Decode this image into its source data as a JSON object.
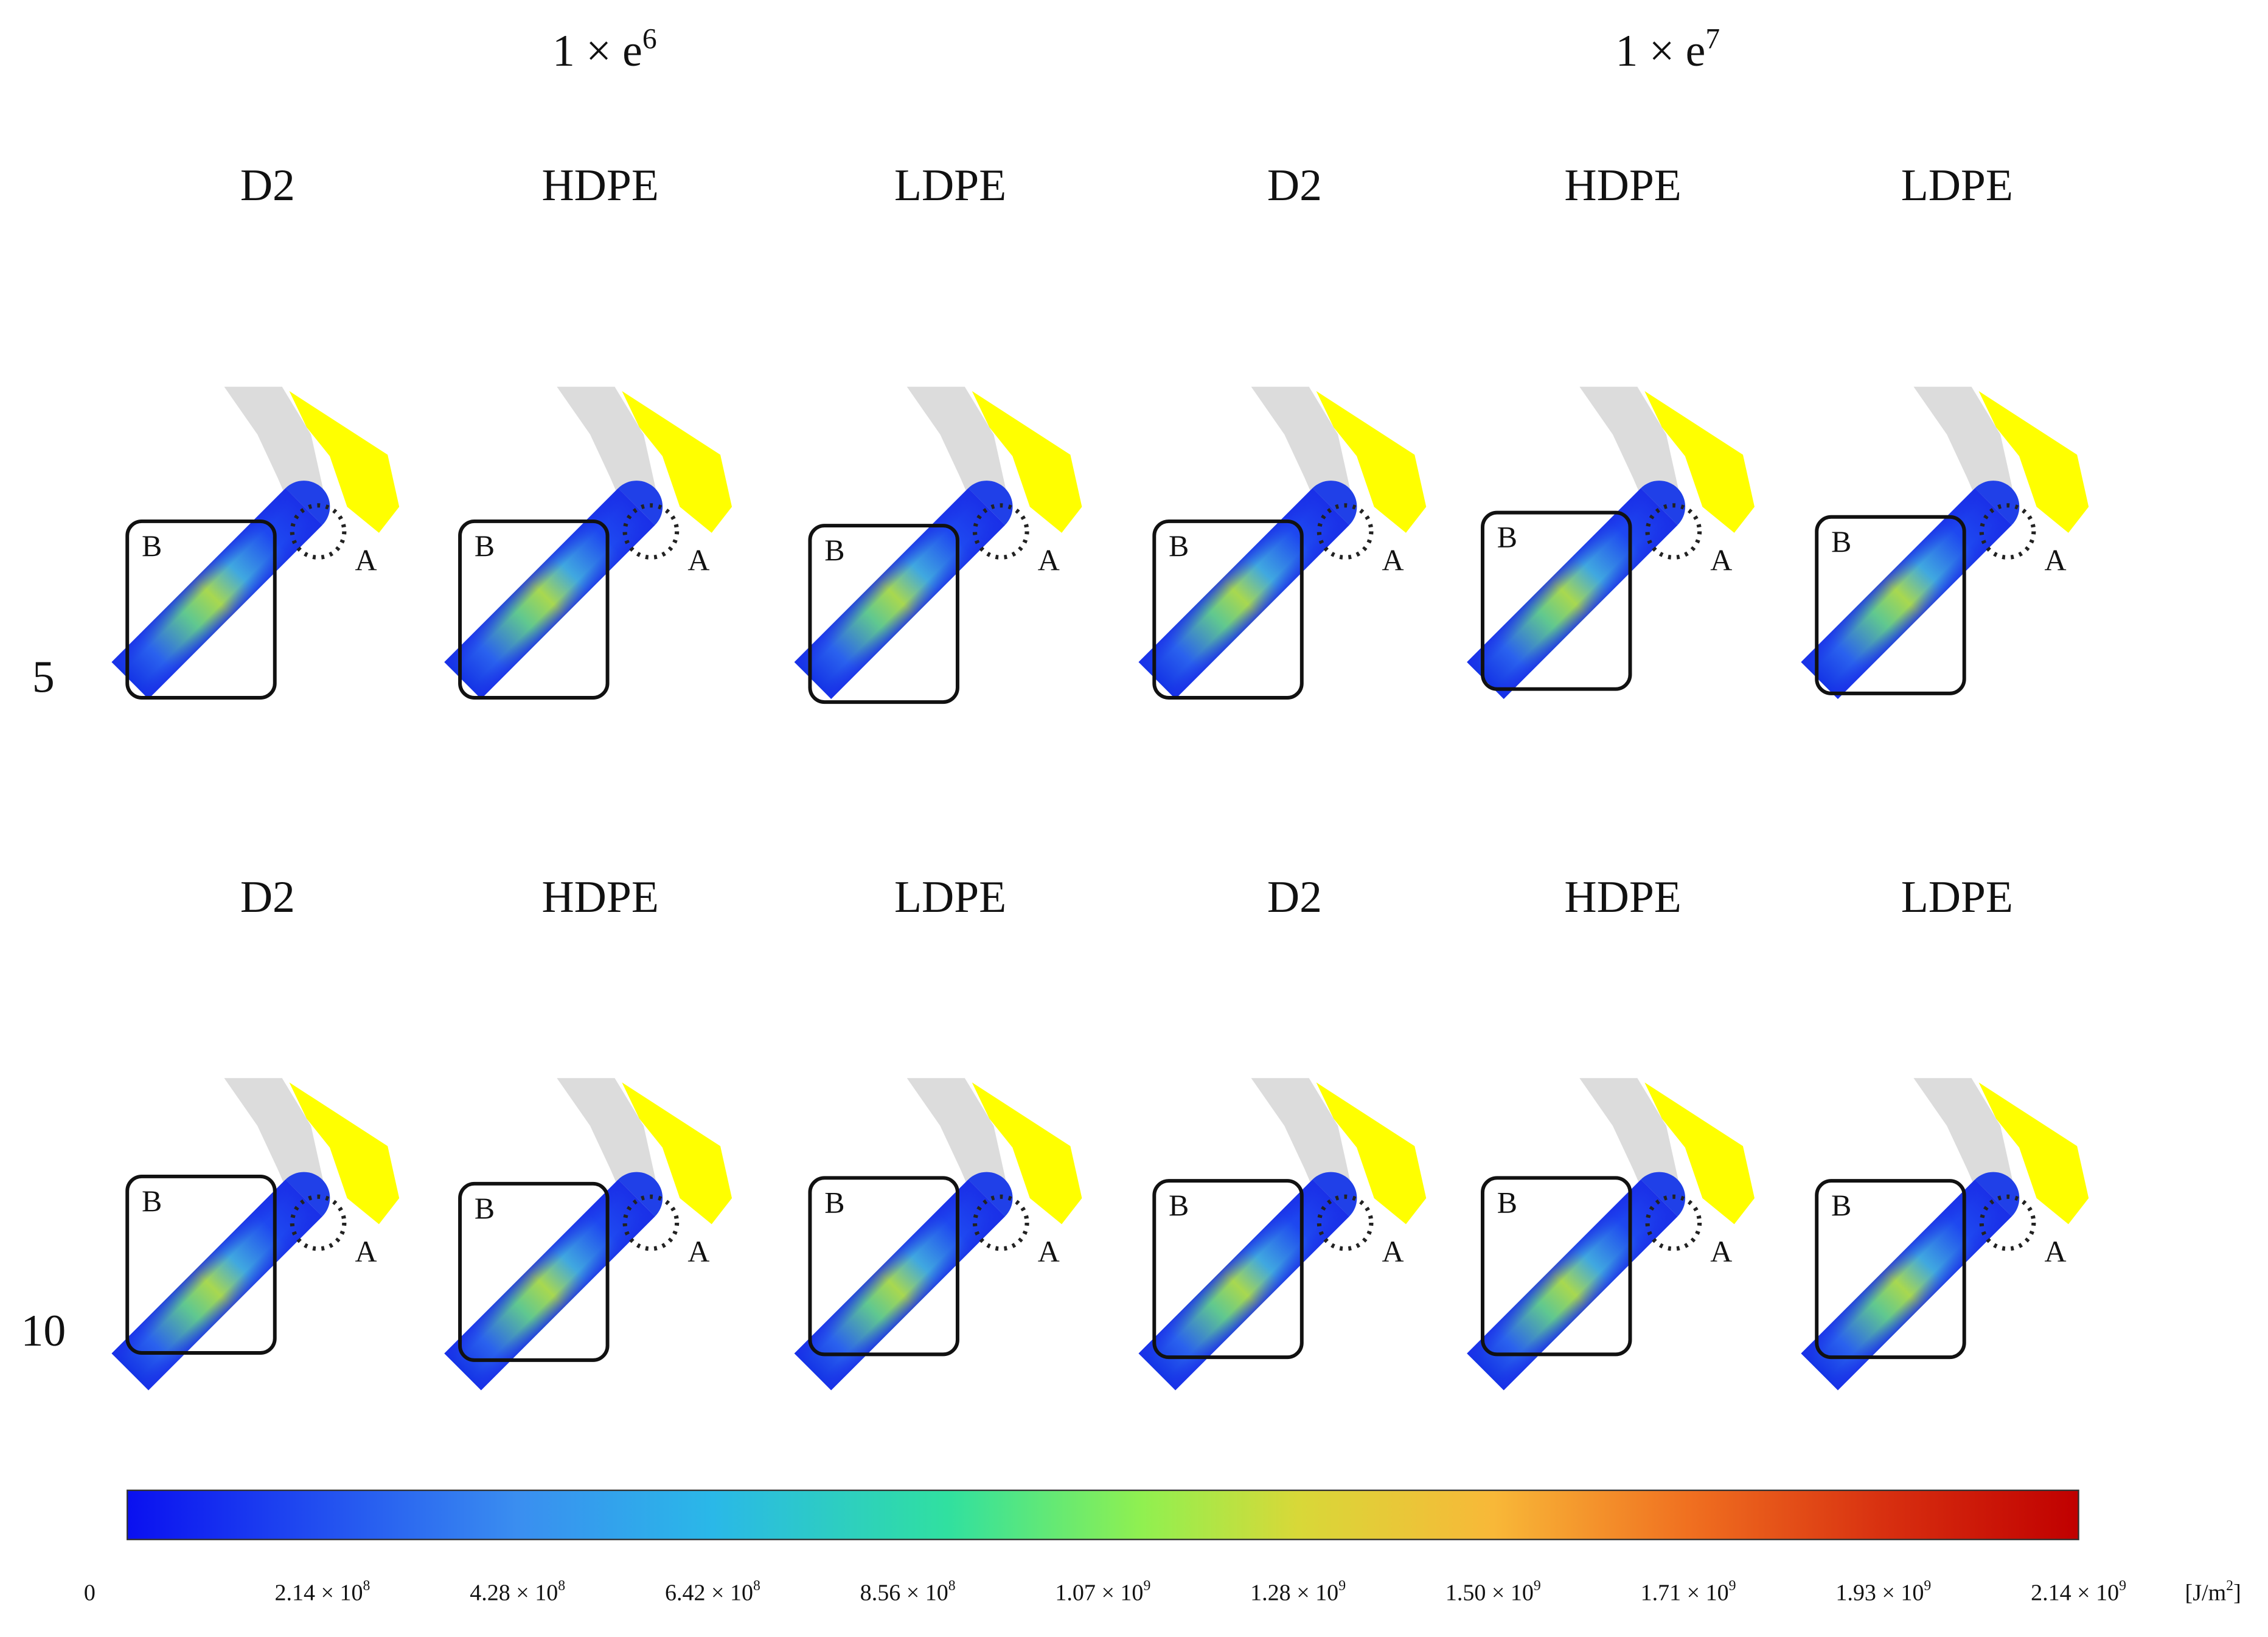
{
  "groups": [
    {
      "base": "1 × e",
      "exp": "6"
    },
    {
      "base": "1 × e",
      "exp": "7"
    }
  ],
  "rows": [
    {
      "label": "5",
      "panels": [
        {
          "material": "D2",
          "box": "B",
          "circle": "A"
        },
        {
          "material": "HDPE",
          "box": "B",
          "circle": "A"
        },
        {
          "material": "LDPE",
          "box": "B",
          "circle": "A"
        },
        {
          "material": "D2",
          "box": "B",
          "circle": "A"
        },
        {
          "material": "HDPE",
          "box": "B",
          "circle": "A"
        },
        {
          "material": "LDPE",
          "box": "B",
          "circle": "A"
        }
      ]
    },
    {
      "label": "10",
      "panels": [
        {
          "material": "D2",
          "box": "B",
          "circle": "A"
        },
        {
          "material": "HDPE",
          "box": "B",
          "circle": "A"
        },
        {
          "material": "LDPE",
          "box": "B",
          "circle": "A"
        },
        {
          "material": "D2",
          "box": "B",
          "circle": "A"
        },
        {
          "material": "HDPE",
          "box": "B",
          "circle": "A"
        },
        {
          "material": "LDPE",
          "box": "B",
          "circle": "A"
        }
      ]
    }
  ],
  "colorbar": {
    "ticks": [
      {
        "mantissa": "0"
      },
      {
        "mantissa": "2.14 × 10",
        "exp": "8"
      },
      {
        "mantissa": "4.28 × 10",
        "exp": "8"
      },
      {
        "mantissa": "6.42 × 10",
        "exp": "8"
      },
      {
        "mantissa": "8.56 × 10",
        "exp": "8"
      },
      {
        "mantissa": "1.07 × 10",
        "exp": "9"
      },
      {
        "mantissa": "1.28 × 10",
        "exp": "9"
      },
      {
        "mantissa": "1.50 × 10",
        "exp": "9"
      },
      {
        "mantissa": "1.71 × 10",
        "exp": "9"
      },
      {
        "mantissa": "1.93 × 10",
        "exp": "9"
      },
      {
        "mantissa": "2.14 × 10",
        "exp": "9"
      }
    ],
    "unit": {
      "pre": "[J/m",
      "sup": "2",
      "post": "]"
    }
  }
}
